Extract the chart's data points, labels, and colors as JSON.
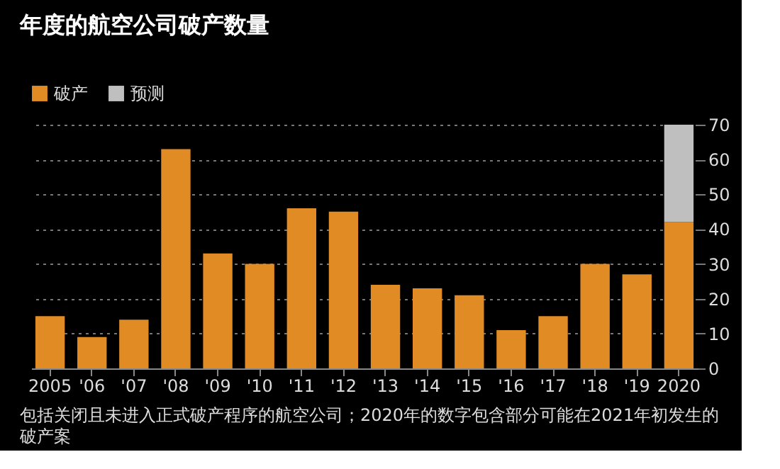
{
  "chart_data": {
    "type": "bar",
    "title": "年度的航空公司破产数量",
    "stacked": true,
    "categories": [
      "2005",
      "'06",
      "'07",
      "'08",
      "'09",
      "'10",
      "'11",
      "'12",
      "'13",
      "'14",
      "'15",
      "'16",
      "'17",
      "'18",
      "'19",
      "2020"
    ],
    "series": [
      {
        "name": "破产",
        "color": "#e08b24",
        "values": [
          15,
          9,
          14,
          63,
          33,
          30,
          46,
          45,
          24,
          23,
          21,
          11,
          15,
          30,
          27,
          42
        ]
      },
      {
        "name": "预测",
        "color": "#bfbfbf",
        "values": [
          null,
          null,
          null,
          null,
          null,
          null,
          null,
          null,
          null,
          null,
          null,
          null,
          null,
          null,
          null,
          28
        ]
      }
    ],
    "ylim": [
      0,
      70
    ],
    "yticks": [
      0,
      10,
      20,
      30,
      40,
      50,
      60,
      70
    ],
    "grid": "y",
    "legend": "top left",
    "annotations": [
      "包括关闭且未进入正式破产程序的航空公司；2020年的数字包含部分可能在2021年初发生的破产案"
    ]
  }
}
